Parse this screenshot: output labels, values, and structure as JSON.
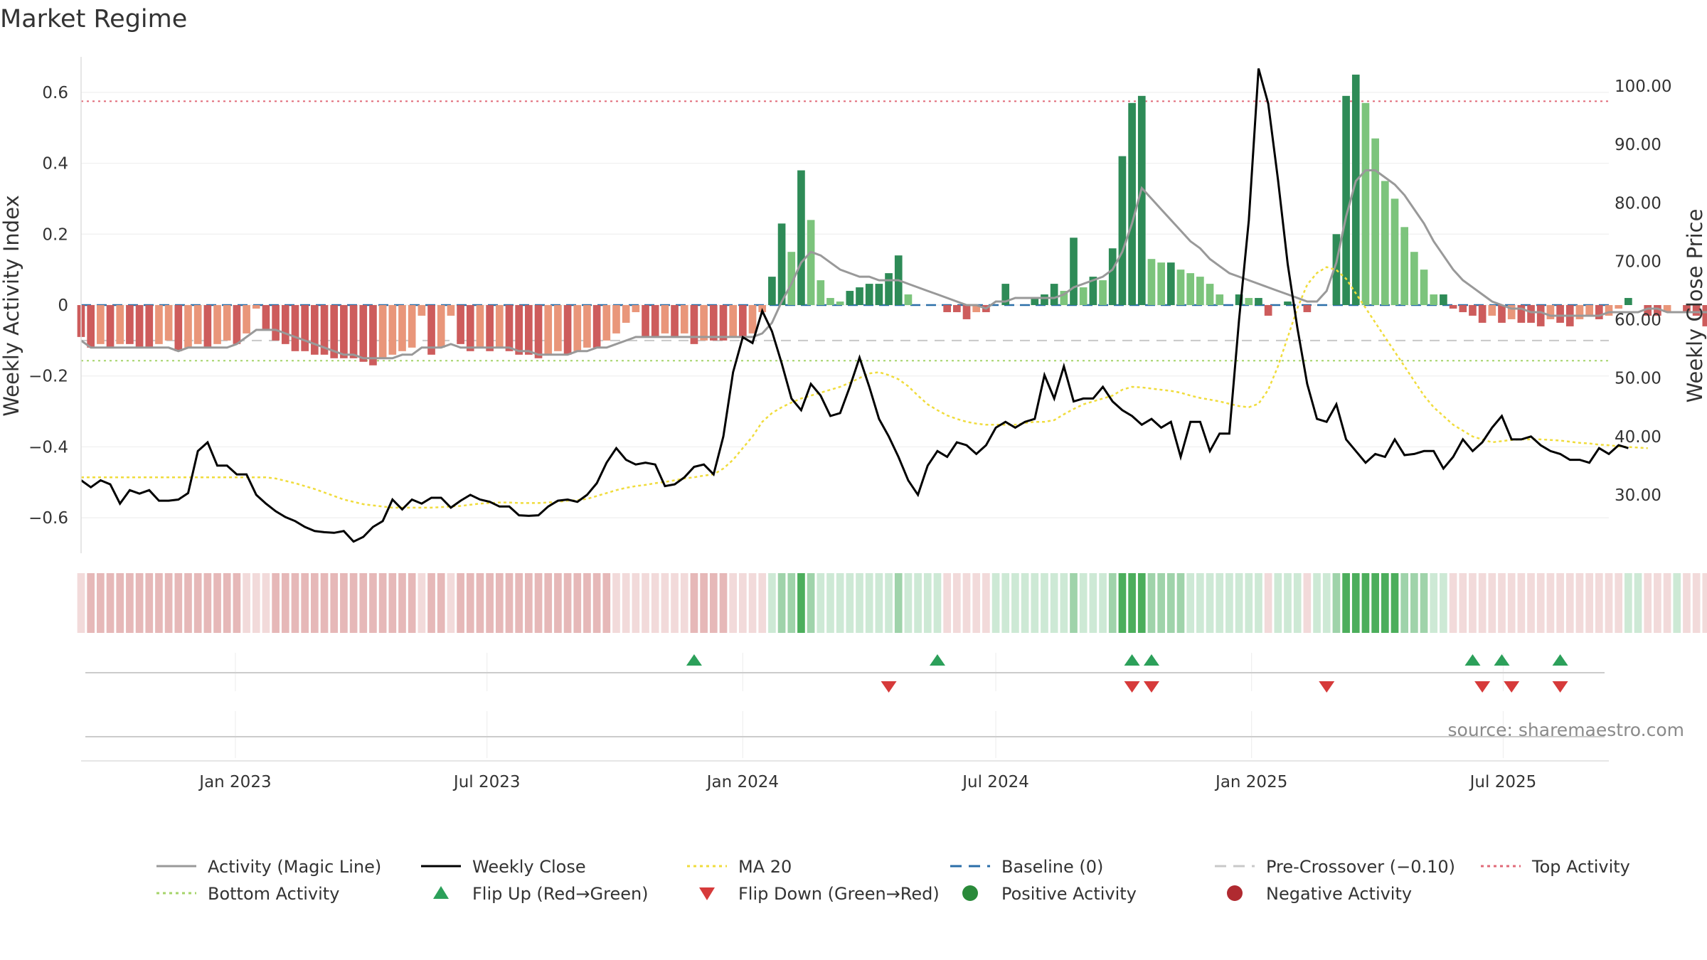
{
  "chart_data": {
    "type": "bar",
    "title": "Market Regime",
    "source": "source: sharemaestro.com",
    "y_left": {
      "label": "Weekly Activity Index",
      "ylim": [
        -0.7,
        0.7
      ],
      "ticks": [
        -0.6,
        -0.4,
        -0.2,
        0,
        0.2,
        0.4,
        0.6
      ],
      "tick_labels": [
        "−0.6",
        "−0.4",
        "−0.2",
        "0",
        "0.2",
        "0.4",
        "0.6"
      ]
    },
    "y_right": {
      "label": "Weekly Close Price",
      "ylim": [
        20,
        105
      ],
      "ticks": [
        30,
        40,
        50,
        60,
        70,
        80,
        90,
        100
      ],
      "tick_labels": [
        "30.00",
        "40.00",
        "50.00",
        "60.00",
        "70.00",
        "80.00",
        "90.00",
        "100.00"
      ]
    },
    "x_axis": {
      "start": "2022-09-12",
      "end": "2025-09-15",
      "ticks": [
        "2023-01-01",
        "2023-07-01",
        "2024-01-01",
        "2024-07-01",
        "2025-01-01",
        "2025-07-01"
      ],
      "tick_labels": [
        "Jan 2023",
        "Jul 2023",
        "Jan 2024",
        "Jul 2024",
        "Jan 2025",
        "Jul 2025"
      ]
    },
    "start_date": "2022-09-12",
    "weekly_activity": [
      -0.09,
      -0.12,
      -0.11,
      -0.12,
      -0.11,
      -0.11,
      -0.12,
      -0.12,
      -0.11,
      -0.1,
      -0.13,
      -0.12,
      -0.11,
      -0.12,
      -0.11,
      -0.1,
      -0.11,
      -0.08,
      -0.01,
      -0.07,
      -0.1,
      -0.11,
      -0.13,
      -0.13,
      -0.14,
      -0.14,
      -0.15,
      -0.15,
      -0.15,
      -0.16,
      -0.17,
      -0.15,
      -0.14,
      -0.13,
      -0.12,
      -0.03,
      -0.14,
      -0.12,
      -0.03,
      -0.11,
      -0.13,
      -0.12,
      -0.13,
      -0.12,
      -0.13,
      -0.14,
      -0.14,
      -0.15,
      -0.14,
      -0.13,
      -0.14,
      -0.13,
      -0.12,
      -0.12,
      -0.1,
      -0.08,
      -0.05,
      -0.02,
      -0.09,
      -0.09,
      -0.08,
      -0.09,
      -0.08,
      -0.11,
      -0.1,
      -0.1,
      -0.1,
      -0.09,
      -0.09,
      -0.08,
      -0.02,
      0.08,
      0.23,
      0.15,
      0.38,
      0.24,
      0.07,
      0.02,
      0.01,
      0.04,
      0.05,
      0.06,
      0.06,
      0.09,
      0.14,
      0.03,
      0.0,
      0.0,
      0.0,
      -0.02,
      -0.02,
      -0.04,
      -0.02,
      -0.02,
      0.0,
      0.06,
      0.0,
      0.0,
      0.02,
      0.03,
      0.06,
      0.04,
      0.19,
      0.05,
      0.08,
      0.07,
      0.16,
      0.42,
      0.57,
      0.59,
      0.13,
      0.12,
      0.12,
      0.1,
      0.09,
      0.08,
      0.06,
      0.03,
      0.0,
      0.03,
      0.02,
      0.02,
      -0.03,
      0.0,
      0.01,
      0.0,
      -0.02,
      0.0,
      0.0,
      0.2,
      0.59,
      0.65,
      0.57,
      0.47,
      0.35,
      0.3,
      0.22,
      0.15,
      0.1,
      0.03,
      0.03,
      -0.01,
      -0.02,
      -0.03,
      -0.05,
      -0.03,
      -0.05,
      -0.04,
      -0.05,
      -0.05,
      -0.06,
      -0.04,
      -0.05,
      -0.06,
      -0.04,
      -0.03,
      -0.04,
      -0.03,
      -0.01,
      0.02,
      0.0,
      -0.03,
      -0.03,
      -0.02,
      0.0,
      -0.02,
      -0.03,
      -0.06,
      -0.06,
      -0.06,
      -0.07,
      0.07,
      -0.06,
      -0.05,
      -0.05
    ],
    "magic_line": [
      -0.1,
      -0.12,
      -0.12,
      -0.12,
      -0.12,
      -0.12,
      -0.12,
      -0.12,
      -0.12,
      -0.12,
      -0.13,
      -0.12,
      -0.12,
      -0.12,
      -0.12,
      -0.12,
      -0.11,
      -0.09,
      -0.07,
      -0.07,
      -0.07,
      -0.08,
      -0.09,
      -0.1,
      -0.11,
      -0.12,
      -0.13,
      -0.14,
      -0.14,
      -0.15,
      -0.15,
      -0.15,
      -0.15,
      -0.14,
      -0.14,
      -0.12,
      -0.12,
      -0.12,
      -0.11,
      -0.12,
      -0.12,
      -0.12,
      -0.12,
      -0.12,
      -0.12,
      -0.13,
      -0.13,
      -0.14,
      -0.14,
      -0.14,
      -0.14,
      -0.13,
      -0.13,
      -0.12,
      -0.12,
      -0.11,
      -0.1,
      -0.09,
      -0.09,
      -0.09,
      -0.09,
      -0.09,
      -0.09,
      -0.09,
      -0.09,
      -0.09,
      -0.09,
      -0.09,
      -0.09,
      -0.09,
      -0.08,
      -0.05,
      0.01,
      0.06,
      0.12,
      0.15,
      0.14,
      0.12,
      0.1,
      0.09,
      0.08,
      0.08,
      0.07,
      0.07,
      0.07,
      0.06,
      0.05,
      0.04,
      0.03,
      0.02,
      0.01,
      0.0,
      0.0,
      -0.01,
      0.01,
      0.01,
      0.02,
      0.02,
      0.02,
      0.02,
      0.02,
      0.03,
      0.05,
      0.06,
      0.07,
      0.08,
      0.1,
      0.15,
      0.23,
      0.33,
      0.3,
      0.27,
      0.24,
      0.21,
      0.18,
      0.16,
      0.13,
      0.11,
      0.09,
      0.08,
      0.07,
      0.06,
      0.05,
      0.04,
      0.03,
      0.02,
      0.01,
      0.01,
      0.04,
      0.12,
      0.25,
      0.35,
      0.38,
      0.38,
      0.36,
      0.34,
      0.31,
      0.27,
      0.23,
      0.18,
      0.14,
      0.1,
      0.07,
      0.05,
      0.03,
      0.01,
      0.0,
      -0.01,
      -0.01,
      -0.02,
      -0.02,
      -0.03,
      -0.03,
      -0.03,
      -0.03,
      -0.03,
      -0.03,
      -0.02,
      -0.02,
      -0.02,
      -0.02,
      -0.01,
      -0.01,
      -0.02,
      -0.02,
      -0.02,
      -0.02,
      -0.02,
      -0.02,
      -0.03,
      -0.03,
      -0.04,
      -0.03,
      -0.02,
      -0.02,
      -0.02
    ],
    "weekly_close": [
      32.5,
      31.3,
      32.5,
      31.8,
      28.5,
      30.8,
      30.2,
      30.8,
      29.0,
      29.0,
      29.2,
      30.3,
      37.5,
      39.0,
      35.0,
      35.0,
      33.5,
      33.5,
      30.0,
      28.5,
      27.2,
      26.2,
      25.5,
      24.5,
      23.8,
      23.6,
      23.5,
      23.8,
      22.0,
      22.8,
      24.5,
      25.5,
      29.2,
      27.5,
      29.2,
      28.5,
      29.5,
      29.5,
      27.8,
      29.0,
      30.0,
      29.2,
      28.8,
      28.0,
      28.0,
      26.5,
      26.4,
      26.5,
      28.0,
      29.0,
      29.2,
      28.8,
      30.0,
      32.0,
      35.5,
      38.0,
      36.0,
      35.2,
      35.5,
      35.2,
      31.5,
      31.8,
      33.0,
      34.8,
      35.2,
      33.5,
      40.0,
      51.0,
      57.0,
      56.0,
      61.5,
      58.0,
      52.5,
      46.5,
      44.5,
      49.0,
      47.0,
      43.5,
      44.0,
      48.5,
      53.5,
      48.5,
      43.0,
      40.0,
      36.5,
      32.5,
      30.0,
      35.0,
      37.5,
      36.5,
      39.0,
      38.5,
      37.0,
      38.5,
      41.5,
      42.5,
      41.5,
      42.5,
      43.0,
      50.5,
      46.5,
      52.0,
      46.0,
      46.5,
      46.5,
      48.5,
      46.0,
      44.5,
      43.5,
      42.0,
      43.0,
      41.5,
      42.5,
      36.5,
      42.5,
      42.5,
      37.5,
      40.5,
      40.5,
      60.0,
      77.0,
      103.0,
      97.0,
      84.0,
      69.5,
      58.5,
      49.0,
      43.0,
      42.5,
      45.5,
      39.5,
      37.5,
      35.5,
      37.0,
      36.5,
      39.5,
      36.8,
      37.0,
      37.5,
      37.5,
      34.5,
      36.5,
      39.5,
      37.5,
      39.0,
      41.5,
      43.5,
      39.5,
      39.5,
      40.0,
      38.5,
      37.5,
      37.0,
      36.0,
      36.0,
      35.5,
      38.0,
      37.0,
      38.5,
      38.0
    ],
    "ma20": [
      33.0,
      33.0,
      33.0,
      33.0,
      33.0,
      33.0,
      33.0,
      33.0,
      33.0,
      33.0,
      33.0,
      33.0,
      33.0,
      33.0,
      33.0,
      33.0,
      33.0,
      33.0,
      33.0,
      33.0,
      32.8,
      32.4,
      32.0,
      31.5,
      31.0,
      30.4,
      29.8,
      29.2,
      28.8,
      28.4,
      28.2,
      28.0,
      27.8,
      27.8,
      27.8,
      27.8,
      27.8,
      27.9,
      28.0,
      28.1,
      28.3,
      28.5,
      28.6,
      28.7,
      28.7,
      28.6,
      28.6,
      28.6,
      28.7,
      28.8,
      29.0,
      29.1,
      29.3,
      29.8,
      30.3,
      30.8,
      31.2,
      31.5,
      31.7,
      32.0,
      32.2,
      32.5,
      32.8,
      33.0,
      33.3,
      33.5,
      34.5,
      36.0,
      38.0,
      40.0,
      42.5,
      44.0,
      45.0,
      45.8,
      46.5,
      47.0,
      47.5,
      48.0,
      48.5,
      49.2,
      50.0,
      50.8,
      51.0,
      50.5,
      49.8,
      48.6,
      47.0,
      45.5,
      44.5,
      43.6,
      43.0,
      42.5,
      42.2,
      42.0,
      42.0,
      42.0,
      42.0,
      42.3,
      42.5,
      42.5,
      42.8,
      43.8,
      44.7,
      45.5,
      46.0,
      46.5,
      47.0,
      48.0,
      48.5,
      48.4,
      48.2,
      48.0,
      47.8,
      47.5,
      47.0,
      46.6,
      46.3,
      46.0,
      45.6,
      45.2,
      45.0,
      45.6,
      48.0,
      52.0,
      57.0,
      62.0,
      66.0,
      68.0,
      69.0,
      68.5,
      67.0,
      64.5,
      62.0,
      59.5,
      57.0,
      54.5,
      52.0,
      49.5,
      47.0,
      45.0,
      43.5,
      42.0,
      41.0,
      40.0,
      39.5,
      39.0,
      39.2,
      39.4,
      39.5,
      39.5,
      39.5,
      39.4,
      39.3,
      39.1,
      38.9,
      38.8,
      38.6,
      38.5,
      38.3,
      38.2,
      38.1,
      38.0
    ],
    "regime_strip_activity": [
      -0.09,
      -0.12,
      -0.11,
      -0.12,
      -0.11,
      -0.11,
      -0.12,
      -0.12,
      -0.11,
      -0.1,
      -0.13,
      -0.12,
      -0.11,
      -0.12,
      -0.11,
      -0.1,
      -0.11,
      -0.08,
      -0.01,
      -0.07,
      -0.1,
      -0.11,
      -0.13,
      -0.13,
      -0.14,
      -0.14,
      -0.15,
      -0.15,
      -0.15,
      -0.16,
      -0.17,
      -0.15,
      -0.14,
      -0.13,
      -0.12,
      -0.03,
      -0.14,
      -0.12,
      -0.03,
      -0.11,
      -0.13,
      -0.12,
      -0.13,
      -0.12,
      -0.13,
      -0.14,
      -0.14,
      -0.15,
      -0.14,
      -0.13,
      -0.14,
      -0.13,
      -0.12,
      -0.12,
      -0.1,
      -0.08,
      -0.05,
      -0.02,
      -0.09,
      -0.09,
      -0.08,
      -0.09,
      -0.08,
      -0.11,
      -0.1,
      -0.1,
      -0.1,
      -0.09,
      -0.09,
      -0.08,
      -0.02,
      0.08,
      0.23,
      0.15,
      0.38,
      0.24,
      0.07,
      0.02,
      0.01,
      0.04,
      0.05,
      0.06,
      0.06,
      0.09,
      0.14,
      0.03,
      0.0,
      0.0,
      0.0,
      -0.02,
      -0.02,
      -0.04,
      -0.02,
      -0.02,
      0.0,
      0.06,
      0.0,
      0.0,
      0.02,
      0.03,
      0.06,
      0.04,
      0.19,
      0.05,
      0.08,
      0.07,
      0.16,
      0.42,
      0.57,
      0.59,
      0.13,
      0.12,
      0.12,
      0.1,
      0.09,
      0.08,
      0.06,
      0.03,
      0.0,
      0.03,
      0.02,
      0.02,
      -0.03,
      0.0,
      0.01,
      0.0,
      -0.02,
      0.0,
      0.0,
      0.2,
      0.59,
      0.65,
      0.57,
      0.47,
      0.35,
      0.3,
      0.22,
      0.15,
      0.1,
      0.03,
      0.03,
      -0.01,
      -0.02,
      -0.03,
      -0.05,
      -0.03,
      -0.05,
      -0.04,
      -0.05,
      -0.05,
      -0.06,
      -0.04,
      -0.05,
      -0.06,
      -0.04,
      -0.03,
      -0.04,
      -0.03,
      -0.01,
      0.02,
      0.0,
      -0.03,
      -0.03,
      -0.02,
      0.0,
      -0.02,
      -0.03,
      -0.06,
      -0.06,
      -0.06,
      -0.07,
      0.07,
      -0.06,
      -0.05,
      -0.05
    ],
    "reference_lines": {
      "baseline": 0,
      "pre_crossover": -0.1,
      "top_activity": 0.575,
      "bottom_activity": -0.157
    },
    "flip_up_dates": [
      "2023-11-27",
      "2024-05-20",
      "2024-10-07",
      "2024-10-21",
      "2025-06-09",
      "2025-06-30",
      "2025-08-11"
    ],
    "flip_down_dates": [
      "2024-04-15",
      "2024-10-07",
      "2024-10-21",
      "2025-02-24",
      "2025-06-16",
      "2025-07-07",
      "2025-08-11"
    ],
    "grid": true,
    "legend_placement": "bottom",
    "legend": [
      {
        "label": "Activity (Magic Line)",
        "kind": "line",
        "color": "#999999",
        "dash": ""
      },
      {
        "label": "Weekly Close",
        "kind": "line",
        "color": "#000000",
        "dash": ""
      },
      {
        "label": "MA 20",
        "kind": "line",
        "color": "#f0dc3c",
        "dash": "dot"
      },
      {
        "label": "Baseline (0)",
        "kind": "line",
        "color": "#2a6ea8",
        "dash": "dash"
      },
      {
        "label": "Pre-Crossover (−0.10)",
        "kind": "line",
        "color": "#c8c8c8",
        "dash": "dash"
      },
      {
        "label": "Top Activity",
        "kind": "line",
        "color": "#e06a78",
        "dash": "dot"
      },
      {
        "label": "Bottom Activity",
        "kind": "line",
        "color": "#a5d46a",
        "dash": "dot"
      },
      {
        "label": "Flip Up (Red→Green)",
        "kind": "tri-up",
        "color": "#2ca05a"
      },
      {
        "label": "Flip Down (Green→Red)",
        "kind": "tri-down",
        "color": "#d63a3a"
      },
      {
        "label": "Positive Activity",
        "kind": "dot",
        "color": "#2a8a3a"
      },
      {
        "label": "Negative Activity",
        "kind": "dot",
        "color": "#b02a30"
      }
    ],
    "colors": {
      "pos_strong": "#2e8b57",
      "pos_weak": "#7cc47c",
      "neg_strong": "#cd5c5c",
      "neg_weak": "#e9967a",
      "strip_pos_1": "#cde9d5",
      "strip_pos_2": "#9fd3aa",
      "strip_pos_3": "#4cae5c",
      "strip_neg_1": "#f2dada",
      "strip_neg_2": "#e6b8b8"
    }
  }
}
